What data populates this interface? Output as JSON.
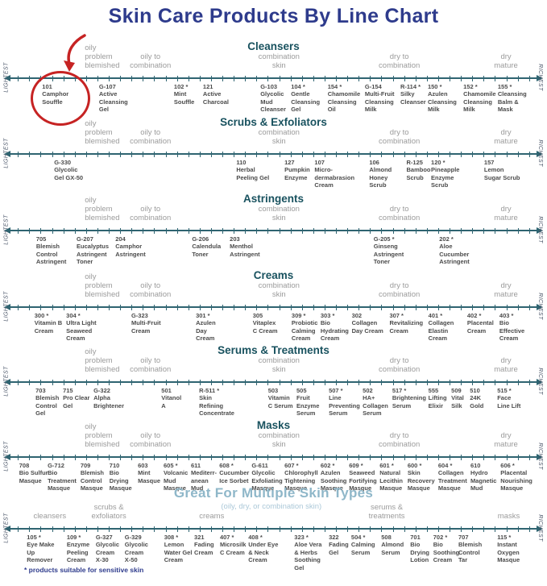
{
  "page": {
    "title": "Skin Care Products By Line Chart",
    "footnote": "* products suitable for sensitive skin"
  },
  "colors": {
    "title_navy": "#2e3b8c",
    "section_teal": "#19525f",
    "axis_teal": "#2f6471",
    "zone_gray": "#9b9b9b",
    "product_gray": "#4b4b4b",
    "multi_blue": "#8fb7c9",
    "multi_subtitle_blue": "#abc8d8",
    "annotation_red": "#c62323"
  },
  "axis_caps": {
    "left": "LIGHTEST",
    "right": "RICHEST"
  },
  "annotation": {
    "shape": "red-circle-with-arrow",
    "highlighted_product": "101 Camphor Souffle"
  },
  "chart_data": {
    "type": "line",
    "title": "Skin Care Products By Line Chart",
    "x_axis": {
      "left_end": "LIGHTEST",
      "right_end": "RICHEST",
      "zones": [
        "oily problem blemished",
        "oily to combination",
        "combination skin",
        "dry to combination",
        "dry mature"
      ]
    },
    "sections": [
      {
        "title": "Cleansers",
        "variant": "standard",
        "zones": [
          {
            "text": "oily\nproblem\nblemished",
            "x": 15.5,
            "align": "left"
          },
          {
            "text": "oily to\ncombination",
            "x": 27.5,
            "align": "center"
          },
          {
            "text": "combination\nskin",
            "x": 51,
            "align": "center"
          },
          {
            "text": "dry to\ncombination",
            "x": 73,
            "align": "center"
          },
          {
            "text": "dry\nmature",
            "x": 92.5,
            "align": "center"
          }
        ],
        "products": [
          {
            "label": "101\nCamphor\nSouffle",
            "x": 7.7
          },
          {
            "label": "G-107\nActive\nCleansing\nGel",
            "x": 18.1
          },
          {
            "label": "102 *\nMint\nSouffle",
            "x": 31.8
          },
          {
            "label": "121\nActive\nCharcoal",
            "x": 37.1
          },
          {
            "label": "G-103\nGlycolic\nMud\nCleanser",
            "x": 47.6
          },
          {
            "label": "104 *\nGentle\nCleansing\nGel",
            "x": 53.2
          },
          {
            "label": "154 *\nChamomile\nCleansing\nOil",
            "x": 59.9
          },
          {
            "label": "G-154\nMulti-Fruit\nCleansing\nMilk",
            "x": 66.7
          },
          {
            "label": "R-114 *\nSilky\nCleanser",
            "x": 73.2
          },
          {
            "label": "150 *\nAzulen\nCleansing\nMilk",
            "x": 78.2
          },
          {
            "label": "152 *\nChamomile\nCleansing\nMilk",
            "x": 84.7
          },
          {
            "label": "155 *\nCleansing\nBalm &\nMask",
            "x": 91.0
          }
        ]
      },
      {
        "title": "Scrubs & Exfoliators",
        "variant": "standard",
        "zones": [
          {
            "text": "oily\nproblem\nblemished",
            "x": 15.5,
            "align": "left"
          },
          {
            "text": "oily to\ncombination",
            "x": 27.5,
            "align": "center"
          },
          {
            "text": "combination\nskin",
            "x": 51,
            "align": "center"
          },
          {
            "text": "dry to\ncombination",
            "x": 73,
            "align": "center"
          },
          {
            "text": "dry\nmature",
            "x": 92.5,
            "align": "center"
          }
        ],
        "products": [
          {
            "label": "G-330\nGlycolic\nGel GX-50",
            "x": 9.9
          },
          {
            "label": "110\nHerbal\nPeeling Gel",
            "x": 43.2
          },
          {
            "label": "127\nPumpkin\nEnzyme",
            "x": 52.0
          },
          {
            "label": "107\nMicro-\ndermabrasion\nCream",
            "x": 57.5
          },
          {
            "label": "106\nAlmond\nHoney\nScrub",
            "x": 67.5
          },
          {
            "label": "R-125\nBamboo\nScrub",
            "x": 74.3
          },
          {
            "label": "120 *\nPineapple\nEnzyme\nScrub",
            "x": 78.8
          },
          {
            "label": "157\nLemon\nSugar Scrub",
            "x": 88.5
          }
        ]
      },
      {
        "title": "Astringents",
        "variant": "standard",
        "zones": [
          {
            "text": "oily\nproblem\nblemished",
            "x": 15.5,
            "align": "left"
          },
          {
            "text": "oily to\ncombination",
            "x": 27.5,
            "align": "center"
          },
          {
            "text": "combination\nskin",
            "x": 51,
            "align": "center"
          },
          {
            "text": "dry to\ncombination",
            "x": 73,
            "align": "center"
          },
          {
            "text": "dry\nmature",
            "x": 92.5,
            "align": "center"
          }
        ],
        "products": [
          {
            "label": "705\nBlemish\nControl\nAstringent",
            "x": 6.6
          },
          {
            "label": "G-207\nEucalyptus\nAstringent\nToner",
            "x": 14.0
          },
          {
            "label": "204\nCamphor\nAstringent",
            "x": 21.1
          },
          {
            "label": "G-206\nCalendula\nToner",
            "x": 35.1
          },
          {
            "label": "203\nMenthol\nAstringent",
            "x": 42.0
          },
          {
            "label": "G-205 *\nGinseng\nAstringent\nToner",
            "x": 68.3
          },
          {
            "label": "202 *\nAloe\nCucumber\nAstringent",
            "x": 80.3
          }
        ]
      },
      {
        "title": "Creams",
        "variant": "standard",
        "zones": [
          {
            "text": "oily\nproblem\nblemished",
            "x": 15.5,
            "align": "left"
          },
          {
            "text": "oily to\ncombination",
            "x": 27.5,
            "align": "center"
          },
          {
            "text": "combination\nskin",
            "x": 51,
            "align": "center"
          },
          {
            "text": "dry to\ncombination",
            "x": 73,
            "align": "center"
          },
          {
            "text": "dry\nmature",
            "x": 92.5,
            "align": "center"
          }
        ],
        "products": [
          {
            "label": "300 *\nVitamin B\nCream",
            "x": 6.3
          },
          {
            "label": "304 *\nUltra Light\nSeaweed\nCream",
            "x": 12.1
          },
          {
            "label": "G-323\nMulti-Fruit\nCream",
            "x": 24.0
          },
          {
            "label": "301 *\nAzulen\nDay\nCream",
            "x": 35.8
          },
          {
            "label": "305\nVitaplex\nC Cream",
            "x": 46.2
          },
          {
            "label": "309 *\nProbiotic\nCalming\nCream",
            "x": 53.3
          },
          {
            "label": "303 *\nBio\nHydrating\nCream",
            "x": 58.6
          },
          {
            "label": "302\nCollagen\nDay Cream",
            "x": 64.3
          },
          {
            "label": "307 *\nRevitalizing\nCream",
            "x": 71.2
          },
          {
            "label": "401 *\nCollagen\nElastin\nCream",
            "x": 78.3
          },
          {
            "label": "402 *\nPlacental\nCream",
            "x": 85.4
          },
          {
            "label": "403 *\nBio\nEffective\nCream",
            "x": 91.3
          }
        ]
      },
      {
        "title": "Serums & Treatments",
        "variant": "standard",
        "zones": [
          {
            "text": "oily\nproblem\nblemished",
            "x": 15.5,
            "align": "left"
          },
          {
            "text": "oily to\ncombination",
            "x": 27.5,
            "align": "center"
          },
          {
            "text": "combination\nskin",
            "x": 51,
            "align": "center"
          },
          {
            "text": "dry to\ncombination",
            "x": 73,
            "align": "center"
          },
          {
            "text": "dry\nmature",
            "x": 92.5,
            "align": "center"
          }
        ],
        "products": [
          {
            "label": "703\nBlemish\nControl\nGel",
            "x": 6.5
          },
          {
            "label": "715\nPro Clear\nGel",
            "x": 11.5
          },
          {
            "label": "G-322\nAlpha\nBrightener",
            "x": 17.1
          },
          {
            "label": "501\nVitanol\nA",
            "x": 29.5
          },
          {
            "label": "R-511 *\nSkin\nRefining\nConcentrate",
            "x": 36.4
          },
          {
            "label": "503\nVitamin\nC Serum",
            "x": 49.0
          },
          {
            "label": "505\nFruit\nEnzyme\nSerum",
            "x": 54.2
          },
          {
            "label": "507 *\nLine\nPreventing\nSerum",
            "x": 60.1
          },
          {
            "label": "502\nHA+\nCollagen\nSerum",
            "x": 66.3
          },
          {
            "label": "517 *\nBrightening\nSerum",
            "x": 71.7
          },
          {
            "label": "555\nLifting\nElixir",
            "x": 78.3
          },
          {
            "label": "509\nVital\nSilk",
            "x": 82.5
          },
          {
            "label": "510\n24K\nGold",
            "x": 85.9
          },
          {
            "label": "515 *\nFace\nLine Lift",
            "x": 90.9
          }
        ]
      },
      {
        "title": "Masks",
        "variant": "standard",
        "zones": [
          {
            "text": "oily\nproblem\nblemished",
            "x": 15.5,
            "align": "left"
          },
          {
            "text": "oily to\ncombination",
            "x": 27.5,
            "align": "center"
          },
          {
            "text": "combination\nskin",
            "x": 51,
            "align": "center"
          },
          {
            "text": "dry to\ncombination",
            "x": 73,
            "align": "center"
          },
          {
            "text": "dry\nmature",
            "x": 92.5,
            "align": "center"
          }
        ],
        "products": [
          {
            "label": "708\nBio Sulfur\nMasque",
            "x": 3.5
          },
          {
            "label": "G-712\nBio\nTreatment\nMasque",
            "x": 8.7
          },
          {
            "label": "709\nBlemish\nControl\nMasque",
            "x": 14.7
          },
          {
            "label": "710\nBio\nDrying\nMasque",
            "x": 20.0
          },
          {
            "label": "603\nMint\nMasque",
            "x": 25.2
          },
          {
            "label": "605 *\nVolcanic\nMud\nMasque",
            "x": 29.9
          },
          {
            "label": "611\nMediterr-\nanean\nMud",
            "x": 34.9
          },
          {
            "label": "608 *\nCucumber\nIce Sorbet",
            "x": 40.1
          },
          {
            "label": "G-611\nGlycolic\nExfoliating\nMasque",
            "x": 46.0
          },
          {
            "label": "607 *\nChlorophyll\nTightening\nMasque",
            "x": 52.0
          },
          {
            "label": "602 *\nAzulen\nSoothing\nMasque",
            "x": 58.6
          },
          {
            "label": "609 *\nSeaweed\nFortifying\nMasque",
            "x": 63.8
          },
          {
            "label": "601 *\nNatural\nLecithin\nMasque",
            "x": 69.4
          },
          {
            "label": "600 *\nSkin\nRecovery\nMasque",
            "x": 74.5
          },
          {
            "label": "604 *\nCollagen\nTreatment\nMasque",
            "x": 80.1
          },
          {
            "label": "610\nHydro\nMagnetic\nMud",
            "x": 86.0
          },
          {
            "label": "606 *\nPlacental\nNourishing\nMasque",
            "x": 91.5
          }
        ]
      },
      {
        "title": "Great For Multiple Skin Types",
        "subtitle": "(oily, dry, or combination skin)",
        "variant": "multi",
        "zones": [
          {
            "text": "cleansers",
            "x": 9.1,
            "align": "center"
          },
          {
            "text": "scrubs &\nexfoliators",
            "x": 19.9,
            "align": "center"
          },
          {
            "text": "creams",
            "x": 38.7,
            "align": "center"
          },
          {
            "text": "serums &\ntreatments",
            "x": 70.7,
            "align": "center"
          },
          {
            "text": "masks",
            "x": 93.0,
            "align": "center"
          }
        ],
        "products": [
          {
            "label": "105 *\nEye Make\nUp\nRemover",
            "x": 4.9
          },
          {
            "label": "109 *\nEnzyme\nPeeling\nCream",
            "x": 12.2
          },
          {
            "label": "G-327\nGlycolic\nCream\nX-30",
            "x": 17.5
          },
          {
            "label": "G-329\nGlycolic\nCream\nX-50",
            "x": 22.8
          },
          {
            "label": "308 *\nLemon\nWater Gel\nCream",
            "x": 30.0
          },
          {
            "label": "321\nFading\nCream",
            "x": 35.5
          },
          {
            "label": "407 *\nMicrosilk\nC Cream",
            "x": 40.2
          },
          {
            "label": "408 *\nUnder Eye\n& Neck\nCream",
            "x": 45.4
          },
          {
            "label": "323 *\nAloe Vera\n& Herbs\nSoothing\nGel",
            "x": 53.8
          },
          {
            "label": "322\nFading\nGel",
            "x": 60.1
          },
          {
            "label": "504 *\nCalming\nSerum",
            "x": 64.2
          },
          {
            "label": "508\nAlmond\nSerum",
            "x": 69.7
          },
          {
            "label": "701\nBio\nDrying\nLotion",
            "x": 75.0
          },
          {
            "label": "702 *\nBio\nSoothing\nCream",
            "x": 79.2
          },
          {
            "label": "707\nBlemish\nControl\nTar",
            "x": 83.8
          },
          {
            "label": "115 *\nInstant\nOxygen\nMasque",
            "x": 90.9
          }
        ]
      }
    ]
  }
}
